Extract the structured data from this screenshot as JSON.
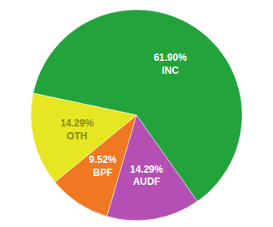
{
  "chart_data": {
    "type": "pie",
    "categories": [
      "INC",
      "AUDF",
      "BPF",
      "OTH"
    ],
    "values": [
      61.9,
      14.29,
      9.52,
      14.29
    ],
    "value_labels": [
      "61.90%",
      "14.29%",
      "9.52%",
      "14.29%"
    ],
    "colors": [
      "#22a33c",
      "#b450b4",
      "#f07822",
      "#e6e622"
    ],
    "data_labels": true
  }
}
